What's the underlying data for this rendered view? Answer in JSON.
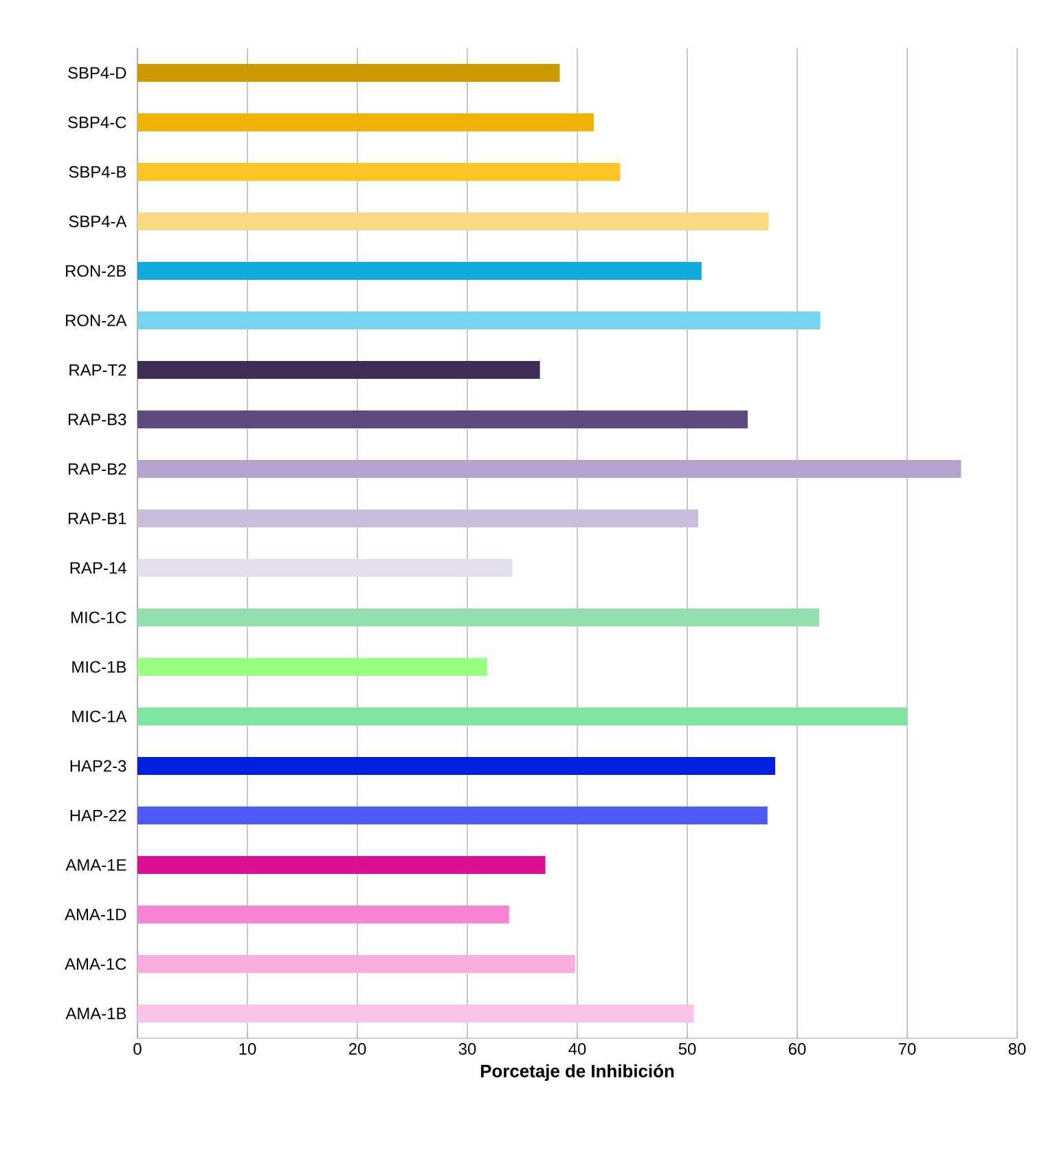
{
  "chart_data": {
    "type": "bar",
    "orientation": "horizontal",
    "xlabel": "Porcetaje de Inhibición",
    "categories": [
      "SBP4-D",
      "SBP4-C",
      "SBP4-B",
      "SBP4-A",
      "RON-2B",
      "RON-2A",
      "RAP-T2",
      "RAP-B3",
      "RAP-B2",
      "RAP-B1",
      "RAP-14",
      "MIC-1C",
      "MIC-1B",
      "MIC-1A",
      "HAP2-3",
      "HAP-22",
      "AMA-1E",
      "AMA-1D",
      "AMA-1C",
      "AMA-1B"
    ],
    "values": [
      38.4,
      41.5,
      43.9,
      57.4,
      51.3,
      62.1,
      36.6,
      55.5,
      74.9,
      51.0,
      34.1,
      62.0,
      31.8,
      70.0,
      58.0,
      57.3,
      37.1,
      33.8,
      39.8,
      50.6
    ],
    "colors": [
      "#cc9900",
      "#f0b400",
      "#ffc425",
      "#ffd97f",
      "#12a9dc",
      "#76d3f2",
      "#3f2f55",
      "#5e4a7c",
      "#b4a3cc",
      "#c9bedd",
      "#e3dfec",
      "#93dfae",
      "#99ff80",
      "#7ee6a0",
      "#0020e0",
      "#4e5afc",
      "#dd0f94",
      "#f885d4",
      "#f9addf",
      "#fbc3e8"
    ],
    "xlim": [
      0,
      80
    ],
    "xticks": [
      0,
      10,
      20,
      30,
      40,
      50,
      60,
      70,
      80
    ],
    "grid": "x"
  }
}
